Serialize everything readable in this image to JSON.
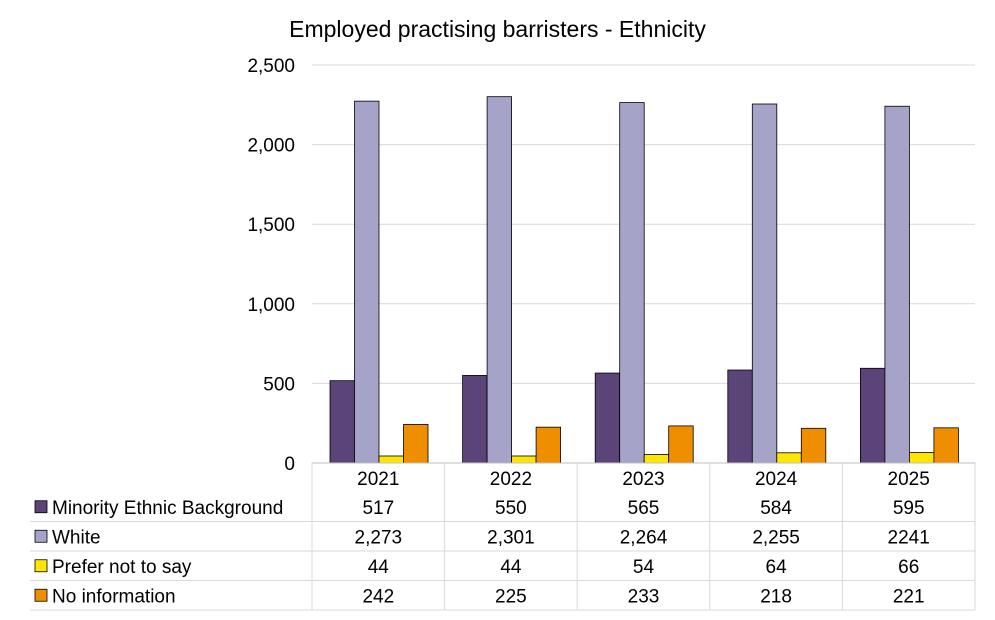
{
  "chart_data": {
    "type": "bar",
    "title": "Employed practising barristers - Ethnicity",
    "xlabel": "",
    "ylabel": "",
    "categories": [
      "2021",
      "2022",
      "2023",
      "2024",
      "2025"
    ],
    "ylim": [
      0,
      2500
    ],
    "yticks": [
      "0",
      "500",
      "1,000",
      "1,500",
      "2,000",
      "2,500"
    ],
    "grid": true,
    "legend_placement": "data-table-left",
    "series": [
      {
        "name": "Minority Ethnic Background",
        "color": "#5a4478",
        "values": [
          517,
          550,
          565,
          584,
          595
        ],
        "labels": [
          "517",
          "550",
          "565",
          "584",
          "595"
        ]
      },
      {
        "name": "White",
        "color": "#a6a3c9",
        "values": [
          2273,
          2301,
          2264,
          2255,
          2241
        ],
        "labels": [
          "2,273",
          "2,301",
          "2,264",
          "2,255",
          "2241"
        ]
      },
      {
        "name": "Prefer not to say",
        "color": "#ffe600",
        "values": [
          44,
          44,
          54,
          64,
          66
        ],
        "labels": [
          "44",
          "44",
          "54",
          "64",
          "66"
        ]
      },
      {
        "name": "No information",
        "color": "#ef8f00",
        "values": [
          242,
          225,
          233,
          218,
          221
        ],
        "labels": [
          "242",
          "225",
          "233",
          "218",
          "221"
        ]
      }
    ]
  }
}
